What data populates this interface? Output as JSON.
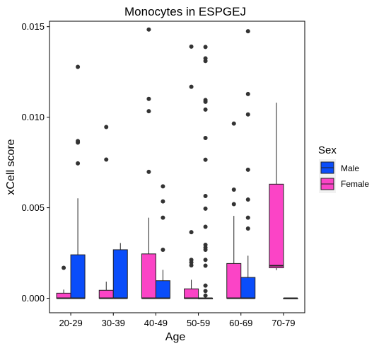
{
  "chart_data": {
    "type": "box",
    "title": "Monocytes in ESPGEJ",
    "xlabel": "Age",
    "ylabel": "xCell score",
    "ylim": [
      -0.0008,
      0.0153
    ],
    "yticks": [
      0.0,
      0.005,
      0.01,
      0.015
    ],
    "ytick_labels": [
      "0.000",
      "0.005",
      "0.010",
      "0.015"
    ],
    "grid": false,
    "categories": [
      "20-29",
      "30-39",
      "40-49",
      "50-59",
      "60-69",
      "70-79"
    ],
    "legend": {
      "title": "Sex",
      "position": "right",
      "entries": [
        "Male",
        "Female"
      ]
    },
    "colors": {
      "Male": "#0a4dfa",
      "Female": "#fb44c6",
      "outlier": "#333333",
      "line": "#222222"
    },
    "series": [
      {
        "name": "Female",
        "boxes": [
          {
            "category": "20-29",
            "min": 0.0,
            "q1": 0.0,
            "median": 0.0,
            "q3": 0.00028,
            "max": 0.00048,
            "outliers": [
              0.00168
            ]
          },
          {
            "category": "30-39",
            "min": 0.0,
            "q1": 0.0,
            "median": 0.0,
            "q3": 0.00044,
            "max": 0.00092,
            "outliers": [
              0.00766,
              0.00946
            ]
          },
          {
            "category": "40-49",
            "min": 0.0,
            "q1": 0.0,
            "median": 0.0,
            "q3": 0.00245,
            "max": 0.00445,
            "outliers": [
              0.00698,
              0.01033,
              0.01101,
              0.01484
            ]
          },
          {
            "category": "50-59",
            "min": 0.0,
            "q1": 0.0,
            "median": 0.0,
            "q3": 0.00052,
            "max": 0.00102,
            "outliers": [
              0.00182,
              0.00198,
              0.00212,
              0.00365,
              0.01168,
              0.0139
            ]
          },
          {
            "category": "60-69",
            "min": 0.0,
            "q1": 0.0,
            "median": 0.0,
            "q3": 0.00192,
            "max": 0.00455,
            "outliers": [
              0.0052,
              0.006,
              0.00965
            ]
          },
          {
            "category": "70-79",
            "min": 0.00155,
            "q1": 0.00168,
            "median": 0.0018,
            "q3": 0.0063,
            "max": 0.0108,
            "outliers": []
          }
        ]
      },
      {
        "name": "Male",
        "boxes": [
          {
            "category": "20-29",
            "min": 0.0,
            "q1": 0.0,
            "median": 0.0,
            "q3": 0.0024,
            "max": 0.00552,
            "outliers": [
              0.00745,
              0.0086,
              0.00868,
              0.01278
            ]
          },
          {
            "category": "30-39",
            "min": 0.0,
            "q1": 0.0,
            "median": 0.0,
            "q3": 0.00268,
            "max": 0.00305,
            "outliers": []
          },
          {
            "category": "40-49",
            "min": 0.0,
            "q1": 0.0,
            "median": 0.0,
            "q3": 0.00097,
            "max": 0.00157,
            "outliers": [
              0.00268,
              0.00445,
              0.00535,
              0.00618
            ]
          },
          {
            "category": "50-59",
            "min": 0.0,
            "q1": 0.0,
            "median": 0.0,
            "q3": 0.0,
            "max": 0.0,
            "outliers": [
              0.00015,
              0.0004,
              0.0007,
              0.0018,
              0.00212,
              0.00268,
              0.0028,
              0.00295,
              0.00395,
              0.00495,
              0.00565,
              0.00765,
              0.00885,
              0.01042,
              0.01085,
              0.01095,
              0.0131,
              0.01325,
              0.01388
            ]
          },
          {
            "category": "60-69",
            "min": 0.0,
            "q1": 0.0,
            "median": 0.0,
            "q3": 0.00115,
            "max": 0.00235,
            "outliers": [
              0.00385,
              0.00445,
              0.00545,
              0.0071,
              0.01015,
              0.01128,
              0.01475
            ]
          },
          {
            "category": "70-79",
            "min": 0.0,
            "q1": 0.0,
            "median": 0.0,
            "q3": 0.0,
            "max": 0.0,
            "outliers": []
          }
        ]
      }
    ]
  }
}
